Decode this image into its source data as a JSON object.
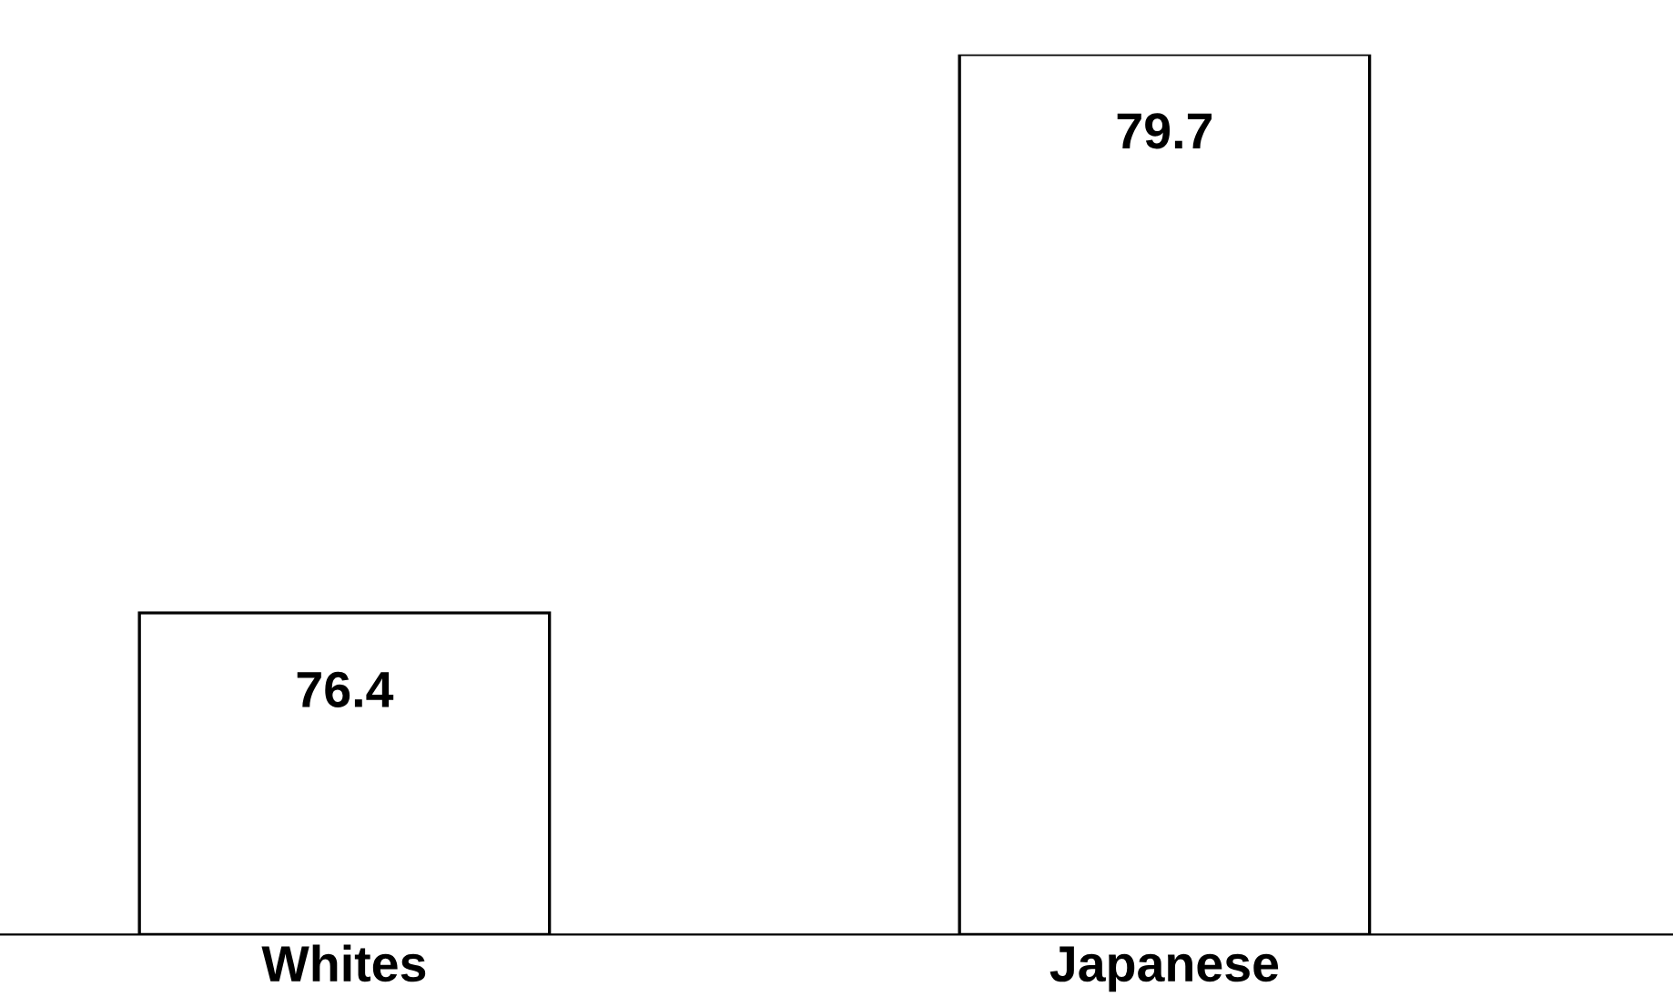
{
  "chart_data": {
    "type": "bar",
    "categories": [
      "Whites",
      "Japanese"
    ],
    "values": [
      76.4,
      79.7
    ],
    "color": "#ffffff",
    "ylim": [
      74.5,
      79.7
    ],
    "data_labels": true,
    "tick_labels": "x",
    "grid": false,
    "legend": false
  }
}
